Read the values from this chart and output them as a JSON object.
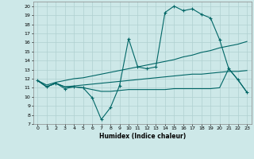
{
  "xlabel": "Humidex (Indice chaleur)",
  "bg_color": "#cde8e8",
  "line_color": "#006666",
  "grid_color": "#b0d0d0",
  "xlim": [
    -0.5,
    23.5
  ],
  "ylim": [
    7,
    20.5
  ],
  "yticks": [
    7,
    8,
    9,
    10,
    11,
    12,
    13,
    14,
    15,
    16,
    17,
    18,
    19,
    20
  ],
  "xticks": [
    0,
    1,
    2,
    3,
    4,
    5,
    6,
    7,
    8,
    9,
    10,
    11,
    12,
    13,
    14,
    15,
    16,
    17,
    18,
    19,
    20,
    21,
    22,
    23
  ],
  "line1_x": [
    0,
    1,
    2,
    3,
    4,
    5,
    6,
    7,
    8,
    9,
    10,
    11,
    12,
    13,
    14,
    15,
    16,
    17,
    18,
    19,
    20,
    21,
    22,
    23
  ],
  "line1_y": [
    11.8,
    11.1,
    11.5,
    10.9,
    11.1,
    11.0,
    9.9,
    7.5,
    8.8,
    11.2,
    16.4,
    13.3,
    13.1,
    13.3,
    19.3,
    20.0,
    19.5,
    19.7,
    19.1,
    18.7,
    16.3,
    13.1,
    11.9,
    10.5
  ],
  "line2_x": [
    0,
    1,
    2,
    3,
    4,
    5,
    6,
    7,
    8,
    9,
    10,
    11,
    12,
    13,
    14,
    15,
    16,
    17,
    18,
    19,
    20,
    21,
    22,
    23
  ],
  "line2_y": [
    11.8,
    11.3,
    11.6,
    11.8,
    12.0,
    12.1,
    12.3,
    12.5,
    12.7,
    12.9,
    13.1,
    13.3,
    13.5,
    13.7,
    13.9,
    14.1,
    14.4,
    14.6,
    14.9,
    15.1,
    15.4,
    15.6,
    15.8,
    16.1
  ],
  "line3_x": [
    0,
    1,
    2,
    3,
    4,
    5,
    6,
    7,
    8,
    9,
    10,
    11,
    12,
    13,
    14,
    15,
    16,
    17,
    18,
    19,
    20,
    21,
    22,
    23
  ],
  "line3_y": [
    11.8,
    11.1,
    11.5,
    11.1,
    11.2,
    11.3,
    11.4,
    11.5,
    11.6,
    11.7,
    11.8,
    11.9,
    12.0,
    12.1,
    12.2,
    12.3,
    12.4,
    12.5,
    12.5,
    12.6,
    12.7,
    12.8,
    12.8,
    12.9
  ],
  "line4_x": [
    0,
    1,
    2,
    3,
    4,
    5,
    6,
    7,
    8,
    9,
    10,
    11,
    12,
    13,
    14,
    15,
    16,
    17,
    18,
    19,
    20,
    21,
    22,
    23
  ],
  "line4_y": [
    11.8,
    11.1,
    11.5,
    11.1,
    11.1,
    11.0,
    10.8,
    10.6,
    10.6,
    10.7,
    10.8,
    10.8,
    10.8,
    10.8,
    10.8,
    10.9,
    10.9,
    10.9,
    10.9,
    10.9,
    11.0,
    13.1,
    11.9,
    10.5
  ]
}
